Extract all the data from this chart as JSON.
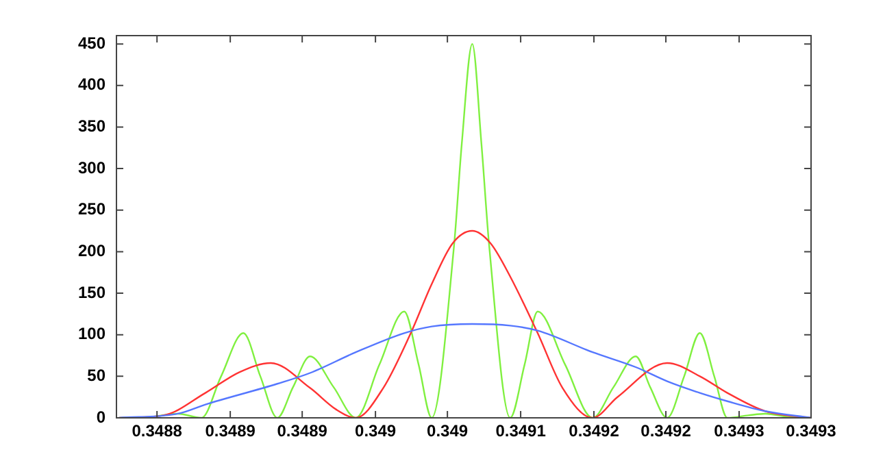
{
  "chart_data": {
    "type": "line",
    "xlim": [
      0.348789,
      0.34932
    ],
    "ylim": [
      0,
      460
    ],
    "xticks": [
      {
        "value": 0.34882,
        "label": "0.3488"
      },
      {
        "value": 0.348876,
        "label": "0.3489"
      },
      {
        "value": 0.348931,
        "label": "0.3489"
      },
      {
        "value": 0.348987,
        "label": "0.349"
      },
      {
        "value": 0.349042,
        "label": "0.349"
      },
      {
        "value": 0.349098,
        "label": "0.3491"
      },
      {
        "value": 0.349154,
        "label": "0.3492"
      },
      {
        "value": 0.349209,
        "label": "0.3492"
      },
      {
        "value": 0.349265,
        "label": "0.3493"
      },
      {
        "value": 0.34932,
        "label": "0.3493"
      }
    ],
    "yticks": [
      0,
      50,
      100,
      150,
      200,
      250,
      300,
      350,
      400,
      450
    ],
    "grid": false,
    "legend": false,
    "marker": "none",
    "line_style": "solid",
    "series": [
      {
        "color": "#5577ff",
        "x": [
          0.348791,
          0.348836,
          0.348857,
          0.348912,
          0.348937,
          0.348972,
          0.349009,
          0.34903,
          0.349061,
          0.34909,
          0.349111,
          0.349153,
          0.349186,
          0.34921,
          0.349235,
          0.349256,
          0.349285,
          0.34932
        ],
        "values": [
          0,
          5,
          16,
          41,
          54,
          79,
          102,
          110,
          113,
          111,
          105,
          79,
          61,
          44,
          30,
          20,
          8,
          0
        ]
      },
      {
        "color": "#ff3333",
        "x": [
          0.348791,
          0.348825,
          0.348857,
          0.348883,
          0.348907,
          0.348937,
          0.348957,
          0.348972,
          0.348993,
          0.349014,
          0.34903,
          0.349046,
          0.349061,
          0.349075,
          0.34909,
          0.349111,
          0.34913,
          0.349153,
          0.349172,
          0.34921,
          0.349235,
          0.349256,
          0.349285,
          0.34932
        ],
        "values": [
          0,
          3,
          30,
          55,
          66,
          36,
          10,
          0,
          36,
          102,
          161,
          210,
          225,
          210,
          170,
          102,
          36,
          0,
          25,
          66,
          50,
          30,
          8,
          0
        ]
      },
      {
        "color": "#80f040",
        "x": [
          0.348791,
          0.348815,
          0.348836,
          0.348854,
          0.348869,
          0.348886,
          0.348899,
          0.348912,
          0.348924,
          0.348937,
          0.348955,
          0.348972,
          0.34899,
          0.349009,
          0.34902,
          0.34903,
          0.349047,
          0.349053,
          0.349061,
          0.349068,
          0.349074,
          0.34909,
          0.349101,
          0.349111,
          0.349132,
          0.349153,
          0.349169,
          0.349186,
          0.349197,
          0.34921,
          0.349223,
          0.349235,
          0.349246,
          0.349256,
          0.349272,
          0.349285,
          0.349303,
          0.34932
        ],
        "values": [
          0,
          1,
          5,
          0,
          50,
          102,
          50,
          0,
          37,
          74,
          37,
          0,
          64,
          128,
          64,
          0,
          206,
          330,
          450,
          330,
          206,
          0,
          64,
          128,
          64,
          0,
          37,
          74,
          37,
          0,
          50,
          102,
          50,
          0,
          3,
          5,
          1,
          0
        ]
      }
    ]
  }
}
